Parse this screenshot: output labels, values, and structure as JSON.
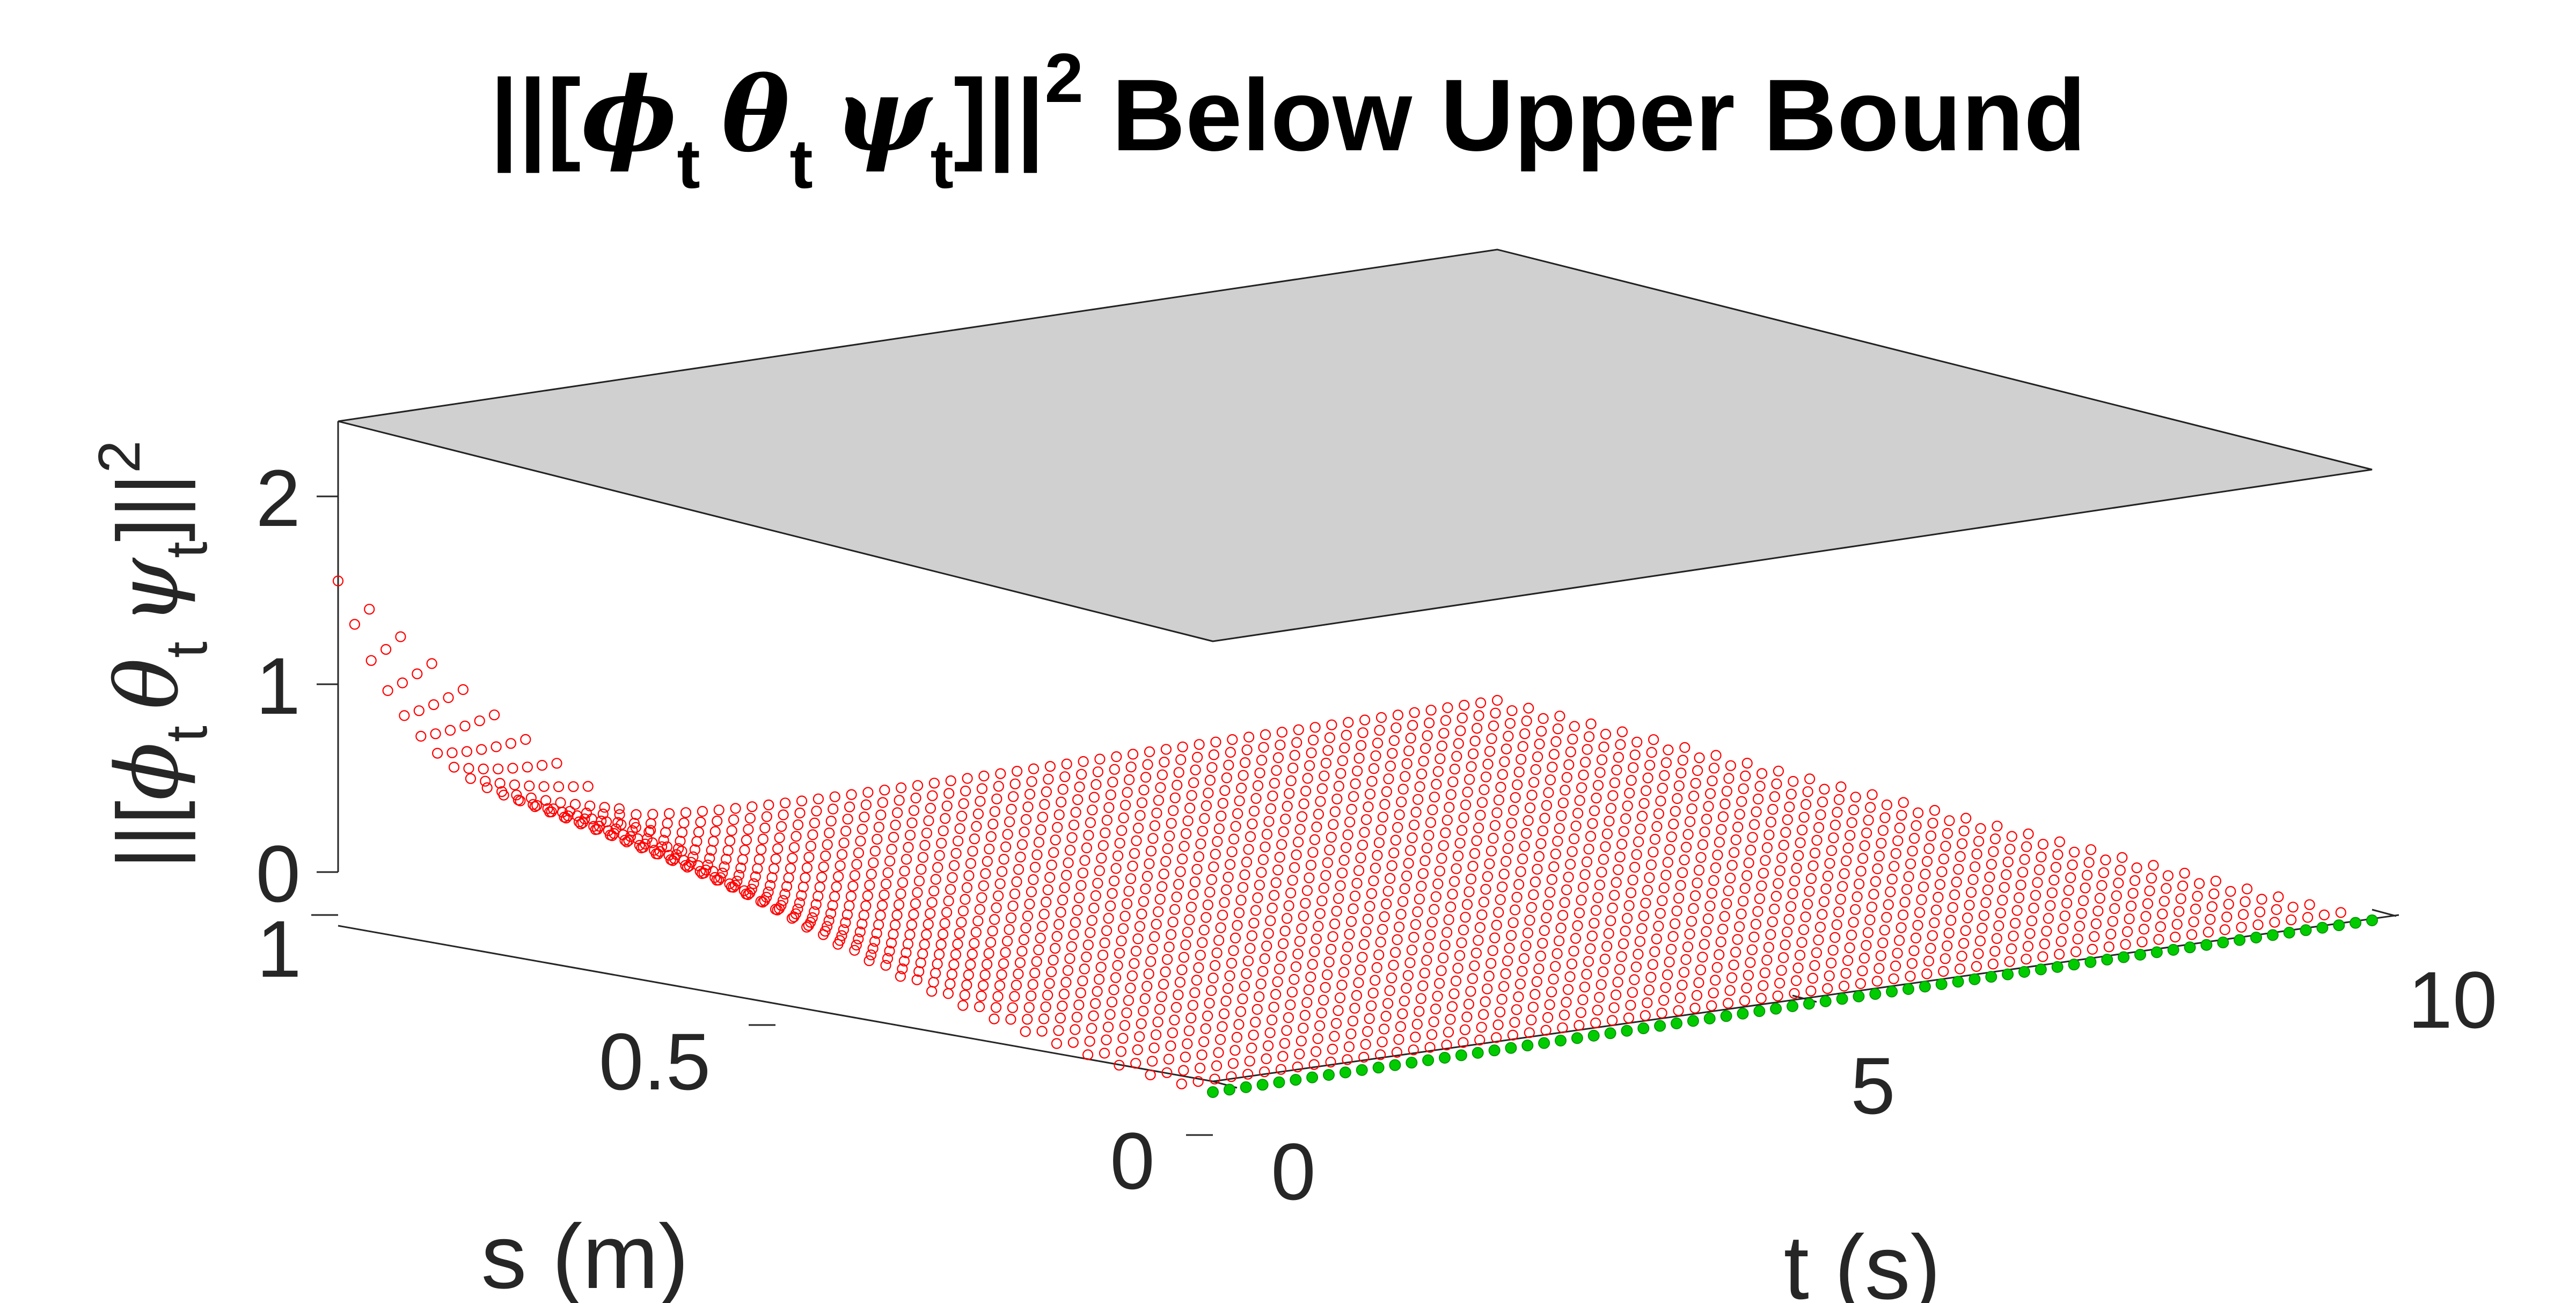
{
  "chart_data": {
    "type": "surface3d-scatter",
    "title": "||[ϕt θt ψt]||2 Below Upper Bound",
    "title_parts": {
      "open": "||[",
      "phi": "ϕ",
      "theta": "θ",
      "psi": "ψ",
      "sub": "t",
      "close": "]||",
      "sup": "2",
      "tail": " Below Upper Bound"
    },
    "xlabel": "s (m)",
    "ylabel": "t (s)",
    "zlabel": "||[ϕt θt ψt]||2",
    "zlabel_parts": {
      "open": "||[",
      "phi": "ϕ",
      "theta": "θ",
      "psi": "ψ",
      "sub": "t",
      "close": "]||",
      "sup": "2"
    },
    "xlim": [
      0,
      1
    ],
    "ylim": [
      0,
      10
    ],
    "zlim": [
      0,
      2.4
    ],
    "xticks": [
      {
        "value": 0,
        "label": "0"
      },
      {
        "value": 0.5,
        "label": "0.5"
      },
      {
        "value": 1,
        "label": "1"
      }
    ],
    "yticks": [
      {
        "value": 0,
        "label": "0"
      },
      {
        "value": 5,
        "label": "5"
      },
      {
        "value": 10,
        "label": "10"
      }
    ],
    "zticks": [
      {
        "value": 0,
        "label": "0"
      },
      {
        "value": 1,
        "label": "1"
      },
      {
        "value": 2,
        "label": "2"
      }
    ],
    "upper_bound": {
      "z": 2.4,
      "color": "#d0d0d0"
    },
    "series": [
      {
        "kind": "surface-markers",
        "marker": "circle-open",
        "color": "#ff0000",
        "z_model": "z(s,t) = 1.55 * s^2 * exp(-1.2 * t)",
        "samples": [
          {
            "s": 1.0,
            "t": 0,
            "z": 1.55
          },
          {
            "s": 1.0,
            "t": 1,
            "z": 0.47
          },
          {
            "s": 1.0,
            "t": 2,
            "z": 0.14
          },
          {
            "s": 1.0,
            "t": 5,
            "z": 0.0
          },
          {
            "s": 1.0,
            "t": 10,
            "z": 0.0
          },
          {
            "s": 0.5,
            "t": 0,
            "z": 0.39
          },
          {
            "s": 0.5,
            "t": 10,
            "z": 0.0
          },
          {
            "s": 0.0,
            "t": 0,
            "z": 0.0
          },
          {
            "s": 0.0,
            "t": 10,
            "z": 0.0
          }
        ]
      },
      {
        "kind": "edge-markers",
        "marker": "circle",
        "color": "#00cc00",
        "s": 0,
        "t_range": [
          0,
          10
        ],
        "z": 0
      }
    ],
    "grid": false,
    "legend": "none"
  }
}
